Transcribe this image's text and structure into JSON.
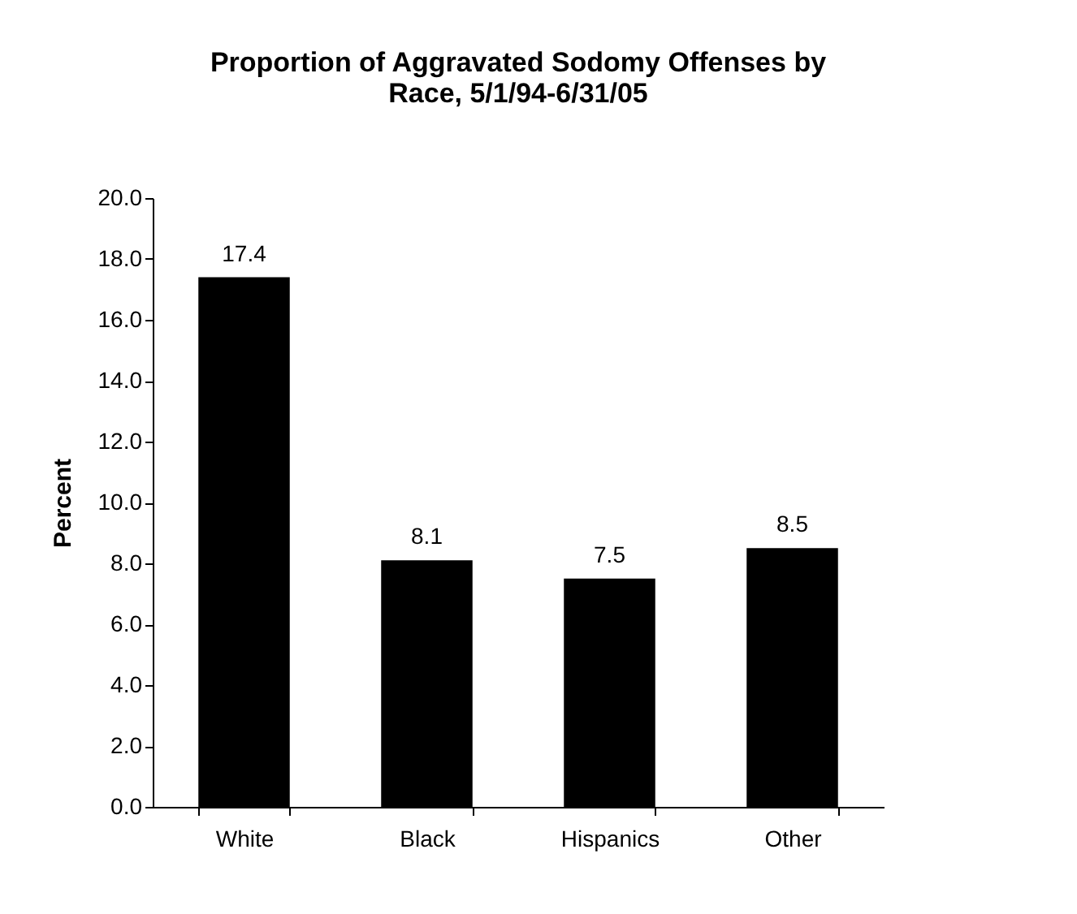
{
  "chart_data": {
    "type": "bar",
    "title": "Proportion of Aggravated Sodomy Offenses by\nRace, 5/1/94-6/31/05",
    "ylabel": "Percent",
    "categories": [
      "White",
      "Black",
      "Hispanics",
      "Other"
    ],
    "values": [
      17.4,
      8.1,
      7.5,
      8.5
    ],
    "color": "#000000",
    "ylim": [
      0,
      20
    ],
    "yticks": [
      {
        "value": 0,
        "label": "0.0"
      },
      {
        "value": 2,
        "label": "2.0"
      },
      {
        "value": 4,
        "label": "4.0"
      },
      {
        "value": 6,
        "label": "6.0"
      },
      {
        "value": 8,
        "label": "8.0"
      },
      {
        "value": 10,
        "label": "10.0"
      },
      {
        "value": 12,
        "label": "12.0"
      },
      {
        "value": 14,
        "label": "14.0"
      },
      {
        "value": 16,
        "label": "16.0"
      },
      {
        "value": 18,
        "label": "18.0"
      },
      {
        "value": 20,
        "label": "20.0"
      }
    ],
    "data_labels": true,
    "grid": false
  }
}
